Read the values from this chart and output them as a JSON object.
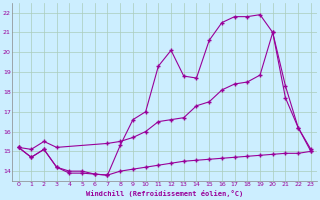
{
  "xlabel": "Windchill (Refroidissement éolien,°C)",
  "background_color": "#cceeff",
  "grid_color": "#aaccbb",
  "line_color": "#990099",
  "xlim": [
    -0.5,
    23.5
  ],
  "ylim": [
    13.5,
    22.5
  ],
  "xticks": [
    0,
    1,
    2,
    3,
    4,
    5,
    6,
    7,
    8,
    9,
    10,
    11,
    12,
    13,
    14,
    15,
    16,
    17,
    18,
    19,
    20,
    21,
    22,
    23
  ],
  "yticks": [
    14,
    15,
    16,
    17,
    18,
    19,
    20,
    21,
    22
  ],
  "series1_x": [
    0,
    1,
    2,
    3,
    4,
    5,
    6,
    7,
    8,
    9,
    10,
    11,
    12,
    13,
    14,
    15,
    16,
    17,
    18,
    19,
    20,
    21,
    22,
    23
  ],
  "series1_y": [
    15.2,
    14.7,
    15.1,
    14.2,
    13.9,
    13.9,
    13.85,
    13.8,
    15.3,
    16.6,
    17.0,
    19.3,
    20.1,
    18.8,
    18.7,
    20.6,
    21.5,
    21.8,
    21.8,
    21.9,
    21.0,
    17.7,
    16.2,
    15.1
  ],
  "series2_x": [
    0,
    1,
    2,
    3,
    4,
    5,
    6,
    7,
    8,
    9,
    10,
    11,
    12,
    13,
    14,
    15,
    16,
    17,
    18,
    19,
    20,
    21,
    22,
    23
  ],
  "series2_y": [
    15.2,
    14.7,
    15.1,
    14.2,
    14.0,
    14.0,
    13.85,
    13.8,
    14.0,
    14.1,
    14.2,
    14.3,
    14.4,
    14.5,
    14.55,
    14.6,
    14.65,
    14.7,
    14.75,
    14.8,
    14.85,
    14.9,
    14.9,
    15.0
  ],
  "series3_x": [
    0,
    1,
    2,
    3,
    7,
    8,
    9,
    10,
    11,
    12,
    13,
    14,
    15,
    16,
    17,
    18,
    19,
    20,
    21,
    22,
    23
  ],
  "series3_y": [
    15.2,
    15.1,
    15.5,
    15.2,
    15.4,
    15.5,
    15.7,
    16.0,
    16.5,
    16.6,
    16.7,
    17.3,
    17.5,
    18.1,
    18.4,
    18.5,
    18.85,
    21.0,
    18.3,
    16.2,
    15.0
  ]
}
